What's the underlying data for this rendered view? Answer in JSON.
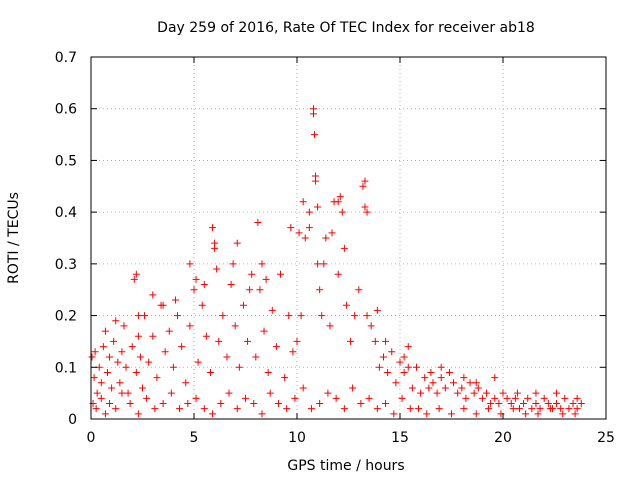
{
  "chart_data": {
    "type": "scatter",
    "title": "Day 259 of 2016, Rate Of TEC Index for receiver ab18",
    "xlabel": "GPS time / hours",
    "ylabel": "ROTI / TECUs",
    "xlim": [
      0,
      25
    ],
    "ylim": [
      0,
      0.7
    ],
    "x_ticks": [
      0,
      5,
      10,
      15,
      20,
      25
    ],
    "y_ticks": [
      0,
      0.1,
      0.2,
      0.3,
      0.4,
      0.5,
      0.6,
      0.7
    ],
    "x_tick_labels": [
      "0",
      "5",
      "10",
      "15",
      "20",
      "25"
    ],
    "y_tick_labels": [
      "0",
      "0.1",
      "0.2",
      "0.3",
      "0.4",
      "0.5",
      "0.6",
      "0.7"
    ],
    "grid": true,
    "marker": "plus",
    "color": "#ff0000",
    "series": [
      {
        "x": [
          0.05,
          0.15,
          0.2,
          0.3,
          0.4,
          0.5,
          0.6,
          0.7,
          0.8,
          0.9,
          1.0,
          1.1,
          1.2,
          1.3,
          1.4,
          1.5,
          1.6,
          1.7,
          1.8,
          2.0,
          2.1,
          2.2,
          2.3,
          2.4,
          2.5,
          2.6,
          2.8,
          3.0,
          3.2,
          3.4,
          3.6,
          3.8,
          4.0,
          4.2,
          4.4,
          4.6,
          4.8,
          5.0,
          5.2,
          5.4,
          5.6,
          5.8,
          6.0,
          6.2,
          6.4,
          6.6,
          6.8,
          7.0,
          7.2,
          7.4,
          7.6,
          7.8,
          8.0,
          8.2,
          8.4,
          8.6,
          8.8,
          9.0,
          9.2,
          9.4,
          9.6,
          9.8,
          10.0,
          10.2,
          10.4,
          10.6,
          10.8,
          10.85,
          10.9,
          11.0,
          11.1,
          11.2,
          11.4,
          11.6,
          11.8,
          12.0,
          12.2,
          12.4,
          12.6,
          12.8,
          13.0,
          13.2,
          13.3,
          13.4,
          13.6,
          13.8,
          14.0,
          14.2,
          14.4,
          14.6,
          14.8,
          15.0,
          15.2,
          15.4,
          15.6,
          15.8,
          16.0,
          16.2,
          16.4,
          16.6,
          16.8,
          17.0,
          17.2,
          17.4,
          17.6,
          17.8,
          18.0,
          18.2,
          18.4,
          18.6,
          18.8,
          19.0,
          19.2,
          19.4,
          19.6,
          19.8,
          20.0,
          20.2,
          20.4,
          20.6,
          20.8,
          21.0,
          21.2,
          21.4,
          21.6,
          21.8,
          22.0,
          22.2,
          22.4,
          22.6,
          22.8,
          23.0,
          23.2,
          23.4,
          23.6,
          23.8,
          0.1,
          0.25,
          0.5,
          0.7,
          0.9,
          1.2,
          1.5,
          1.9,
          2.3,
          2.7,
          3.1,
          3.5,
          3.9,
          4.3,
          4.7,
          5.1,
          5.5,
          5.9,
          6.3,
          6.7,
          7.1,
          7.5,
          7.9,
          8.3,
          8.7,
          9.1,
          9.5,
          9.9,
          10.3,
          10.7,
          11.1,
          11.5,
          11.9,
          12.3,
          12.7,
          13.1,
          13.5,
          13.9,
          14.3,
          14.7,
          15.1,
          15.5,
          15.9,
          16.3,
          16.9,
          17.5,
          18.1,
          18.7,
          19.3,
          19.9,
          20.5,
          21.1,
          21.7,
          22.3,
          22.9,
          23.5,
          2.2,
          2.3,
          3.0,
          3.5,
          4.1,
          4.8,
          5.1,
          5.5,
          5.9,
          6.0,
          6.1,
          6.9,
          7.1,
          7.7,
          8.1,
          8.3,
          8.5,
          9.7,
          10.1,
          10.3,
          10.6,
          10.8,
          10.9,
          11.0,
          11.3,
          11.7,
          12.0,
          12.1,
          12.3,
          13.3,
          13.4,
          13.9,
          14.3,
          15.2,
          15.4,
          16.5,
          17.0,
          18.1,
          18.7,
          19.6,
          20.7,
          21.6,
          22.6,
          23.6
        ],
        "y": [
          0.12,
          0.08,
          0.13,
          0.05,
          0.1,
          0.07,
          0.14,
          0.17,
          0.09,
          0.12,
          0.06,
          0.15,
          0.19,
          0.11,
          0.07,
          0.13,
          0.18,
          0.1,
          0.05,
          0.14,
          0.27,
          0.09,
          0.16,
          0.12,
          0.06,
          0.2,
          0.11,
          0.16,
          0.08,
          0.22,
          0.13,
          0.17,
          0.1,
          0.2,
          0.14,
          0.07,
          0.18,
          0.25,
          0.11,
          0.22,
          0.16,
          0.09,
          0.34,
          0.15,
          0.2,
          0.12,
          0.26,
          0.18,
          0.1,
          0.22,
          0.15,
          0.28,
          0.12,
          0.25,
          0.17,
          0.09,
          0.21,
          0.14,
          0.28,
          0.08,
          0.2,
          0.13,
          0.15,
          0.2,
          0.35,
          0.4,
          0.59,
          0.55,
          0.46,
          0.3,
          0.25,
          0.2,
          0.35,
          0.18,
          0.42,
          0.28,
          0.4,
          0.22,
          0.15,
          0.2,
          0.25,
          0.45,
          0.41,
          0.2,
          0.18,
          0.15,
          0.1,
          0.12,
          0.09,
          0.13,
          0.07,
          0.11,
          0.09,
          0.14,
          0.06,
          0.1,
          0.05,
          0.08,
          0.06,
          0.07,
          0.05,
          0.08,
          0.06,
          0.09,
          0.07,
          0.05,
          0.06,
          0.04,
          0.07,
          0.05,
          0.06,
          0.04,
          0.05,
          0.03,
          0.04,
          0.03,
          0.05,
          0.04,
          0.03,
          0.04,
          0.02,
          0.03,
          0.04,
          0.02,
          0.03,
          0.02,
          0.04,
          0.03,
          0.02,
          0.03,
          0.02,
          0.04,
          0.02,
          0.03,
          0.02,
          0.03,
          0.03,
          0.02,
          0.04,
          0.01,
          0.03,
          0.02,
          0.05,
          0.03,
          0.01,
          0.04,
          0.02,
          0.03,
          0.05,
          0.02,
          0.03,
          0.04,
          0.02,
          0.01,
          0.03,
          0.05,
          0.02,
          0.04,
          0.03,
          0.01,
          0.05,
          0.03,
          0.02,
          0.04,
          0.06,
          0.02,
          0.03,
          0.05,
          0.04,
          0.02,
          0.06,
          0.03,
          0.04,
          0.02,
          0.03,
          0.01,
          0.04,
          0.02,
          0.02,
          0.01,
          0.02,
          0.01,
          0.02,
          0.01,
          0.02,
          0.01,
          0.02,
          0.01,
          0.01,
          0.02,
          0.01,
          0.01,
          0.28,
          0.2,
          0.24,
          0.22,
          0.23,
          0.3,
          0.27,
          0.26,
          0.37,
          0.33,
          0.29,
          0.3,
          0.34,
          0.25,
          0.38,
          0.3,
          0.27,
          0.37,
          0.36,
          0.42,
          0.37,
          0.6,
          0.47,
          0.41,
          0.3,
          0.36,
          0.42,
          0.43,
          0.33,
          0.46,
          0.4,
          0.21,
          0.15,
          0.12,
          0.1,
          0.09,
          0.1,
          0.08,
          0.07,
          0.08,
          0.05,
          0.05,
          0.05,
          0.04
        ]
      }
    ]
  }
}
